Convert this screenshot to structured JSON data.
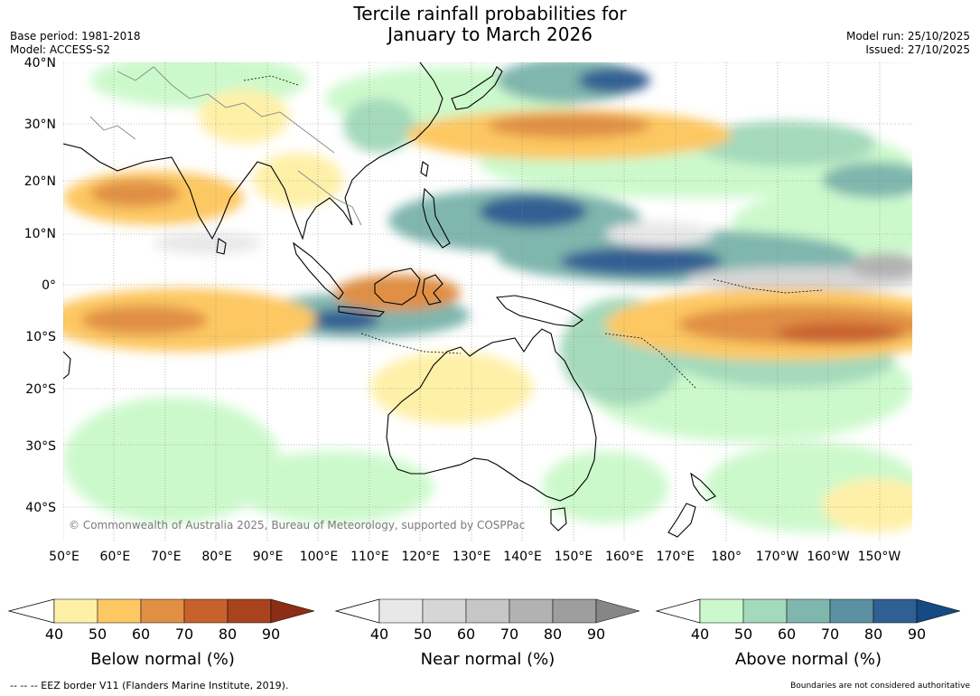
{
  "header": {
    "title_line1": "Tercile rainfall probabilities for",
    "title_line2": "January to March 2026",
    "base_period": "Base period: 1981-2018",
    "model": "Model: ACCESS-S2",
    "model_run": "Model run: 25/10/2025",
    "issued": "Issued: 27/10/2025"
  },
  "map": {
    "copyright": "© Commonwealth of Australia 2025, Bureau of Meteorology, supported by COSPPac",
    "lat_labels": [
      "40°N",
      "30°N",
      "20°N",
      "10°N",
      "0°",
      "10°S",
      "20°S",
      "30°S",
      "40°S"
    ],
    "lon_labels": [
      "50°E",
      "60°E",
      "70°E",
      "80°E",
      "90°E",
      "100°E",
      "110°E",
      "120°E",
      "130°E",
      "140°E",
      "150°E",
      "160°E",
      "170°E",
      "180°",
      "170°W",
      "160°W",
      "150°W"
    ],
    "colors": {
      "below": [
        "#fff0a8",
        "#fdc862",
        "#e08f45",
        "#c9612d",
        "#a9431e",
        "#8c2d16"
      ],
      "near": [
        "#e8e8e8",
        "#d6d6d6",
        "#c6c6c6",
        "#b2b2b2",
        "#9e9e9e",
        "#868686"
      ],
      "above": [
        "#ccf9cc",
        "#a4d9bb",
        "#7fb6ad",
        "#5b91a0",
        "#305f93",
        "#154a82"
      ]
    }
  },
  "colorbars": {
    "ticks": [
      "40",
      "50",
      "60",
      "70",
      "80",
      "90"
    ],
    "below_title": "Below normal (%)",
    "near_title": "Near normal (%)",
    "above_title": "Above normal (%)"
  },
  "footer": {
    "eez_note": "--  --  -- EEZ border V11 (Flanders Marine Institute, 2019).",
    "boundary_note": "Boundaries are not considered authoritative"
  }
}
